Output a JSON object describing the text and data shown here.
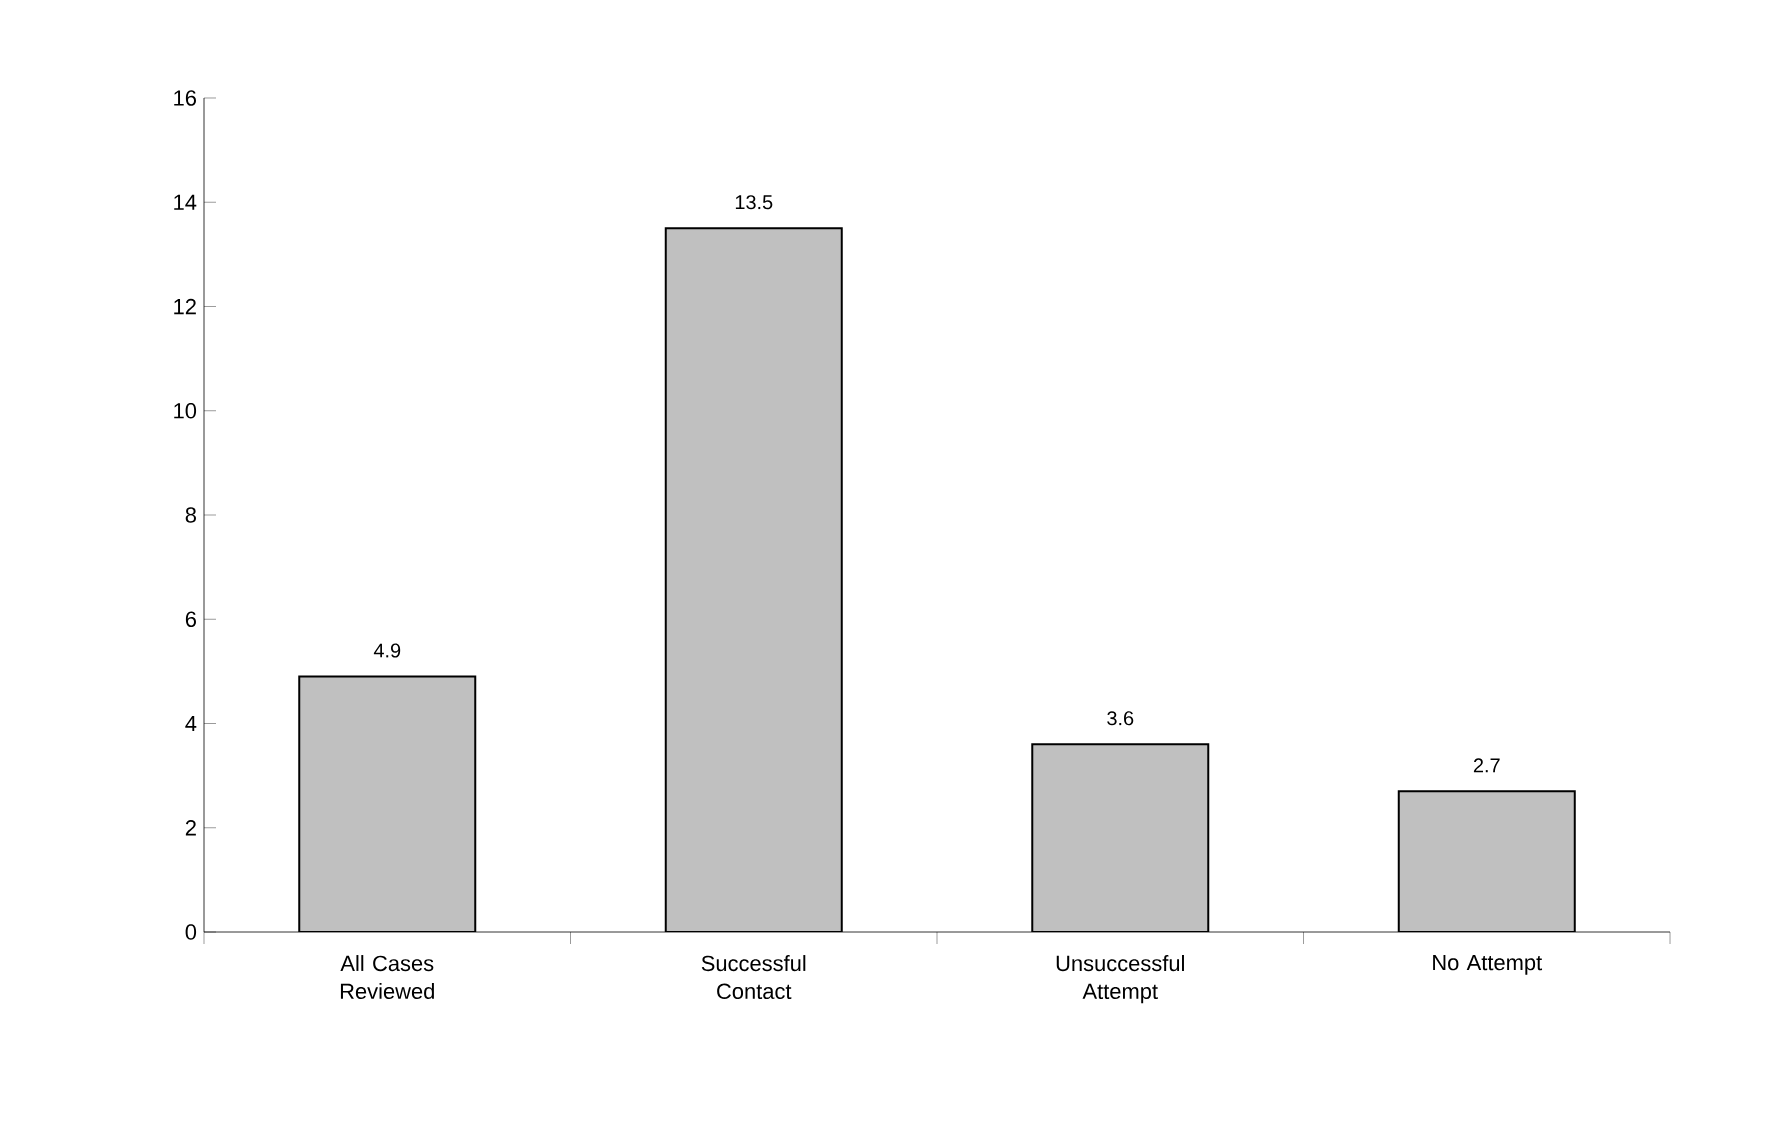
{
  "chart_data": {
    "type": "bar",
    "categories": [
      "All Cases Reviewed",
      "Successful Contact",
      "Unsuccessful Attempt",
      "No Attempt"
    ],
    "values": [
      4.9,
      13.5,
      3.6,
      2.7
    ],
    "color": "#c0c0c0",
    "ylim": [
      0,
      16
    ],
    "yticks": [
      0,
      2,
      4,
      6,
      8,
      10,
      12,
      14,
      16
    ],
    "data_labels": true
  }
}
